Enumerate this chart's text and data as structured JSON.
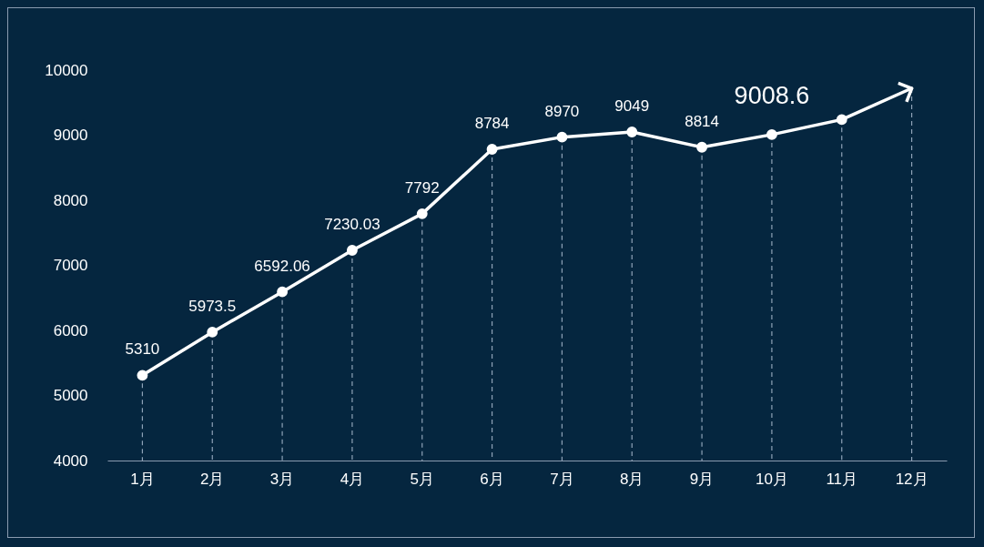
{
  "chart_data": {
    "type": "line",
    "categories": [
      "1月",
      "2月",
      "3月",
      "4月",
      "5月",
      "6月",
      "7月",
      "8月",
      "9月",
      "10月",
      "11月",
      "12月"
    ],
    "series": [
      {
        "color": "#ffffff",
        "values": [
          5310,
          5973.5,
          6592.06,
          7230.03,
          7792,
          8784,
          8970,
          9049,
          8814,
          9008.6,
          9240,
          9720
        ],
        "value_labels": [
          "5310",
          "5973.5",
          "6592.06",
          "7230.03",
          "7792",
          "8784",
          "8970",
          "9049",
          "8814",
          null,
          null,
          null
        ]
      }
    ],
    "annotations": [
      {
        "text": "9008.6",
        "x": "10月",
        "y": 9008.6
      }
    ],
    "ylim": [
      4000,
      10000
    ],
    "yticks": [
      4000,
      5000,
      6000,
      7000,
      8000,
      9000,
      10000
    ],
    "grid": "x",
    "marker": "circle",
    "line_style": "solid"
  }
}
